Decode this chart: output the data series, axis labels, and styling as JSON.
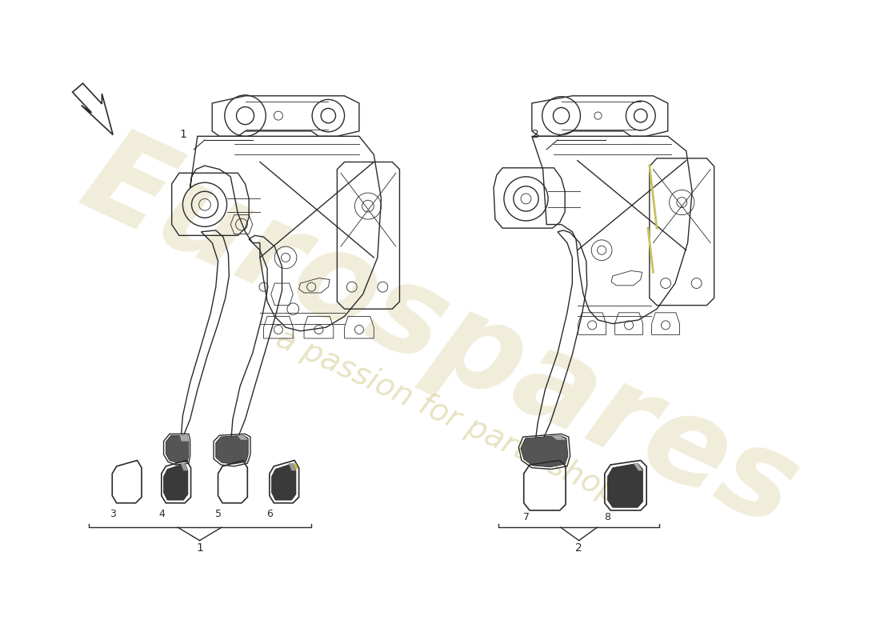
{
  "bg": "#ffffff",
  "lc": "#2a2a2a",
  "dark_fill": "#3a3a3a",
  "grey_fill": "#888888",
  "light_grey": "#bbbbbb",
  "yellow_fill": "#c8c060",
  "watermark1": "Eurospares",
  "watermark2": "a passion for parts shop",
  "wm_color1": "#e0d8b0",
  "wm_color2": "#d0c888",
  "items": [
    "1",
    "2",
    "3",
    "4",
    "5",
    "6",
    "7",
    "8"
  ]
}
